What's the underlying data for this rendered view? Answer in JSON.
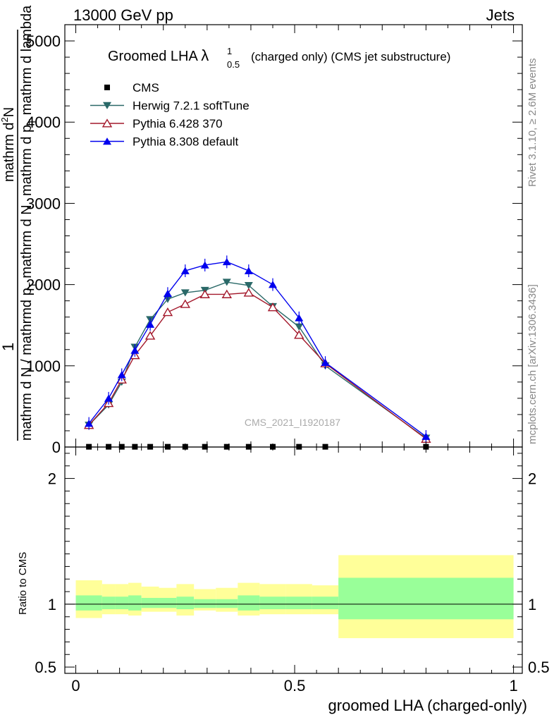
{
  "header": {
    "left": "13000 GeV pp",
    "right": "Jets"
  },
  "side_labels": {
    "rivet": "Rivet 3.1.10, ≥ 2.6M events",
    "mcplots": "mcplots.cern.ch [arXiv:1306.3436]"
  },
  "watermark": "CMS_2021_I1920187",
  "main_title": {
    "prefix": "Groomed LHA ",
    "lambda": "λ",
    "sup": "1",
    "sub": "0.5",
    "suffix": "(charged only) (CMS jet substructure)"
  },
  "y_label_main": {
    "one": "1",
    "den1": "mathrm d N / mathrmd p",
    "den1_sub": "T",
    "den2": " mathrm d N",
    "num1": "mathrm d",
    "num1_sup": "2",
    "num1_tail": "N",
    "num2": "mathrm d p",
    "num2_sub": "T",
    "num2_tail": " mathrm d lambda"
  },
  "y_label_ratio": "Ratio to CMS",
  "x_label": "groomed LHA (charged-only)",
  "colors": {
    "herwig": "#2a6968",
    "pythia6": "#a3182b",
    "pythia8": "#0000ee",
    "cms": "#000000",
    "band_outer": "#ffff99",
    "band_inner": "#99ff99"
  },
  "chart_data": [
    {
      "type": "line",
      "title": "Groomed LHA λ^1_0.5 (charged only) (CMS jet substructure)",
      "xlim": [
        -0.025,
        1.02
      ],
      "ylim": [
        0,
        5200
      ],
      "y_ticks": [
        {
          "v": 0,
          "label": "0"
        },
        {
          "v": 1000,
          "label": "1000"
        },
        {
          "v": 2000,
          "label": "2000"
        },
        {
          "v": 3000,
          "label": "3000"
        },
        {
          "v": 4000,
          "label": "4000"
        },
        {
          "v": 5000,
          "label": "5000"
        }
      ],
      "legend_position": "top-left",
      "series": [
        {
          "name": "CMS",
          "key": "cms",
          "marker": "square",
          "x": [
            0.03,
            0.075,
            0.105,
            0.135,
            0.17,
            0.21,
            0.25,
            0.295,
            0.345,
            0.395,
            0.45,
            0.51,
            0.57,
            0.8
          ],
          "y": [
            3,
            3,
            3,
            3,
            3,
            3,
            3,
            3,
            3,
            3,
            3,
            3,
            3,
            3
          ]
        },
        {
          "name": "Herwig 7.2.1 softTune",
          "key": "herwig",
          "marker": "triangle-down",
          "x": [
            0.03,
            0.075,
            0.105,
            0.135,
            0.17,
            0.21,
            0.25,
            0.295,
            0.345,
            0.395,
            0.45,
            0.51,
            0.57,
            0.8
          ],
          "y": [
            270,
            520,
            800,
            1230,
            1570,
            1820,
            1900,
            1930,
            2030,
            1990,
            1730,
            1480,
            1000,
            110
          ]
        },
        {
          "name": "Pythia 6.428 370",
          "key": "pythia6",
          "marker": "triangle-up-open",
          "x": [
            0.03,
            0.075,
            0.105,
            0.135,
            0.17,
            0.21,
            0.25,
            0.295,
            0.345,
            0.395,
            0.45,
            0.51,
            0.57,
            0.8
          ],
          "y": [
            270,
            540,
            830,
            1130,
            1370,
            1660,
            1760,
            1880,
            1880,
            1900,
            1720,
            1380,
            1030,
            100
          ]
        },
        {
          "name": "Pythia 8.308 default",
          "key": "pythia8",
          "marker": "triangle-up",
          "x": [
            0.03,
            0.075,
            0.105,
            0.135,
            0.17,
            0.21,
            0.25,
            0.295,
            0.345,
            0.395,
            0.45,
            0.51,
            0.57,
            0.8
          ],
          "y": [
            290,
            600,
            890,
            1190,
            1510,
            1890,
            2170,
            2240,
            2280,
            2170,
            2000,
            1590,
            1040,
            130
          ]
        }
      ]
    },
    {
      "type": "area",
      "ylabel": "Ratio to CMS",
      "ylim": [
        0.45,
        2.25
      ],
      "y_ticks": [
        {
          "v": 0.5,
          "label": "0.5"
        },
        {
          "v": 1,
          "label": "1"
        },
        {
          "v": 2,
          "label": "2"
        }
      ],
      "x_ticks": [
        {
          "v": 0,
          "label": "0"
        },
        {
          "v": 0.5,
          "label": "0.5"
        },
        {
          "v": 1,
          "label": "1"
        }
      ],
      "reference_line": 1,
      "bands": [
        {
          "x0": 0.0,
          "x1": 0.06,
          "outer": [
            0.89,
            1.19
          ],
          "inner": [
            0.95,
            1.07
          ]
        },
        {
          "x0": 0.06,
          "x1": 0.09,
          "outer": [
            0.92,
            1.16
          ],
          "inner": [
            0.96,
            1.06
          ]
        },
        {
          "x0": 0.09,
          "x1": 0.12,
          "outer": [
            0.92,
            1.16
          ],
          "inner": [
            0.96,
            1.06
          ]
        },
        {
          "x0": 0.12,
          "x1": 0.15,
          "outer": [
            0.91,
            1.17
          ],
          "inner": [
            0.95,
            1.07
          ]
        },
        {
          "x0": 0.15,
          "x1": 0.19,
          "outer": [
            0.94,
            1.14
          ],
          "inner": [
            0.97,
            1.05
          ]
        },
        {
          "x0": 0.19,
          "x1": 0.23,
          "outer": [
            0.94,
            1.13
          ],
          "inner": [
            0.97,
            1.05
          ]
        },
        {
          "x0": 0.23,
          "x1": 0.27,
          "outer": [
            0.91,
            1.16
          ],
          "inner": [
            0.96,
            1.06
          ]
        },
        {
          "x0": 0.27,
          "x1": 0.32,
          "outer": [
            0.95,
            1.12
          ],
          "inner": [
            0.97,
            1.04
          ]
        },
        {
          "x0": 0.32,
          "x1": 0.37,
          "outer": [
            0.94,
            1.13
          ],
          "inner": [
            0.97,
            1.04
          ]
        },
        {
          "x0": 0.37,
          "x1": 0.42,
          "outer": [
            0.91,
            1.17
          ],
          "inner": [
            0.95,
            1.07
          ]
        },
        {
          "x0": 0.42,
          "x1": 0.48,
          "outer": [
            0.92,
            1.16
          ],
          "inner": [
            0.96,
            1.06
          ]
        },
        {
          "x0": 0.48,
          "x1": 0.54,
          "outer": [
            0.92,
            1.16
          ],
          "inner": [
            0.96,
            1.06
          ]
        },
        {
          "x0": 0.54,
          "x1": 0.6,
          "outer": [
            0.92,
            1.15
          ],
          "inner": [
            0.96,
            1.06
          ]
        },
        {
          "x0": 0.6,
          "x1": 1.0,
          "outer": [
            0.73,
            1.39
          ],
          "inner": [
            0.88,
            1.21
          ]
        }
      ]
    }
  ]
}
